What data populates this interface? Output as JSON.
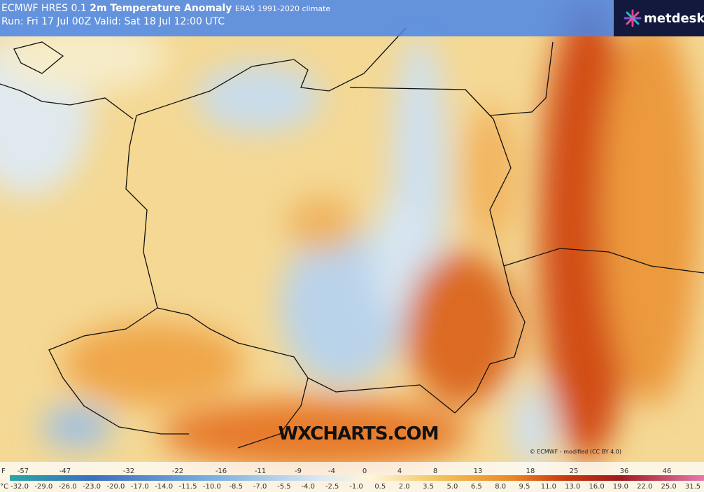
{
  "header": {
    "model": "ECMWF HRES 0.1",
    "title": "2m Temperature Anomaly",
    "climate": "ERA5 1991-2020 climate",
    "run": "Run: Fri 17 Jul 00Z Valid: Sat 18 Jul 12:00 UTC"
  },
  "logo": "metdesk",
  "watermark": "WXCHARTS.COM",
  "credit": "© ECMWF - modified (CC BY 4.0)",
  "colorbar": {
    "f_unit": "F",
    "c_unit": "°C",
    "f_labels": [
      "-57",
      "-47",
      "-32",
      "-22",
      "-16",
      "-11",
      "-9",
      "-4",
      "0",
      "4",
      "8",
      "13",
      "18",
      "25",
      "36",
      "46"
    ],
    "c_labels": [
      "-32.0",
      "-29.0",
      "-26.0",
      "-23.0",
      "-20.0",
      "-17.0",
      "-14.0",
      "-11.5",
      "-10.0",
      "-8.5",
      "-7.0",
      "-5.5",
      "-4.0",
      "-2.5",
      "-1.0",
      "0.5",
      "2.0",
      "3.5",
      "5.0",
      "6.5",
      "8.0",
      "9.5",
      "11.0",
      "13.0",
      "16.0",
      "19.0",
      "22.0",
      "25.0",
      "31.5"
    ]
  }
}
